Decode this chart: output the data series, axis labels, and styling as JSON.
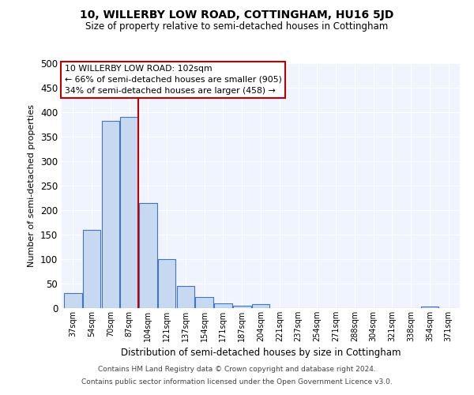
{
  "title": "10, WILLERBY LOW ROAD, COTTINGHAM, HU16 5JD",
  "subtitle": "Size of property relative to semi-detached houses in Cottingham",
  "xlabel": "Distribution of semi-detached houses by size in Cottingham",
  "ylabel": "Number of semi-detached properties",
  "bin_labels": [
    "37sqm",
    "54sqm",
    "70sqm",
    "87sqm",
    "104sqm",
    "121sqm",
    "137sqm",
    "154sqm",
    "171sqm",
    "187sqm",
    "204sqm",
    "221sqm",
    "237sqm",
    "254sqm",
    "271sqm",
    "288sqm",
    "304sqm",
    "321sqm",
    "338sqm",
    "354sqm",
    "371sqm"
  ],
  "bin_values": [
    30,
    160,
    383,
    390,
    215,
    100,
    45,
    22,
    10,
    5,
    8,
    0,
    0,
    0,
    0,
    0,
    0,
    0,
    0,
    3,
    0
  ],
  "bar_color": "#c6d9f0",
  "bar_edge_color": "#4472c4",
  "ylim": [
    0,
    500
  ],
  "yticks": [
    0,
    50,
    100,
    150,
    200,
    250,
    300,
    350,
    400,
    450,
    500
  ],
  "property_line_idx": 4,
  "property_line_color": "#c00000",
  "annotation_title": "10 WILLERBY LOW ROAD: 102sqm",
  "annotation_line1": "← 66% of semi-detached houses are smaller (905)",
  "annotation_line2": "34% of semi-detached houses are larger (458) →",
  "annotation_box_color": "#ffffff",
  "annotation_box_edge": "#c00000",
  "footer1": "Contains HM Land Registry data © Crown copyright and database right 2024.",
  "footer2": "Contains public sector information licensed under the Open Government Licence v3.0.",
  "bg_color": "#f0f4ff"
}
